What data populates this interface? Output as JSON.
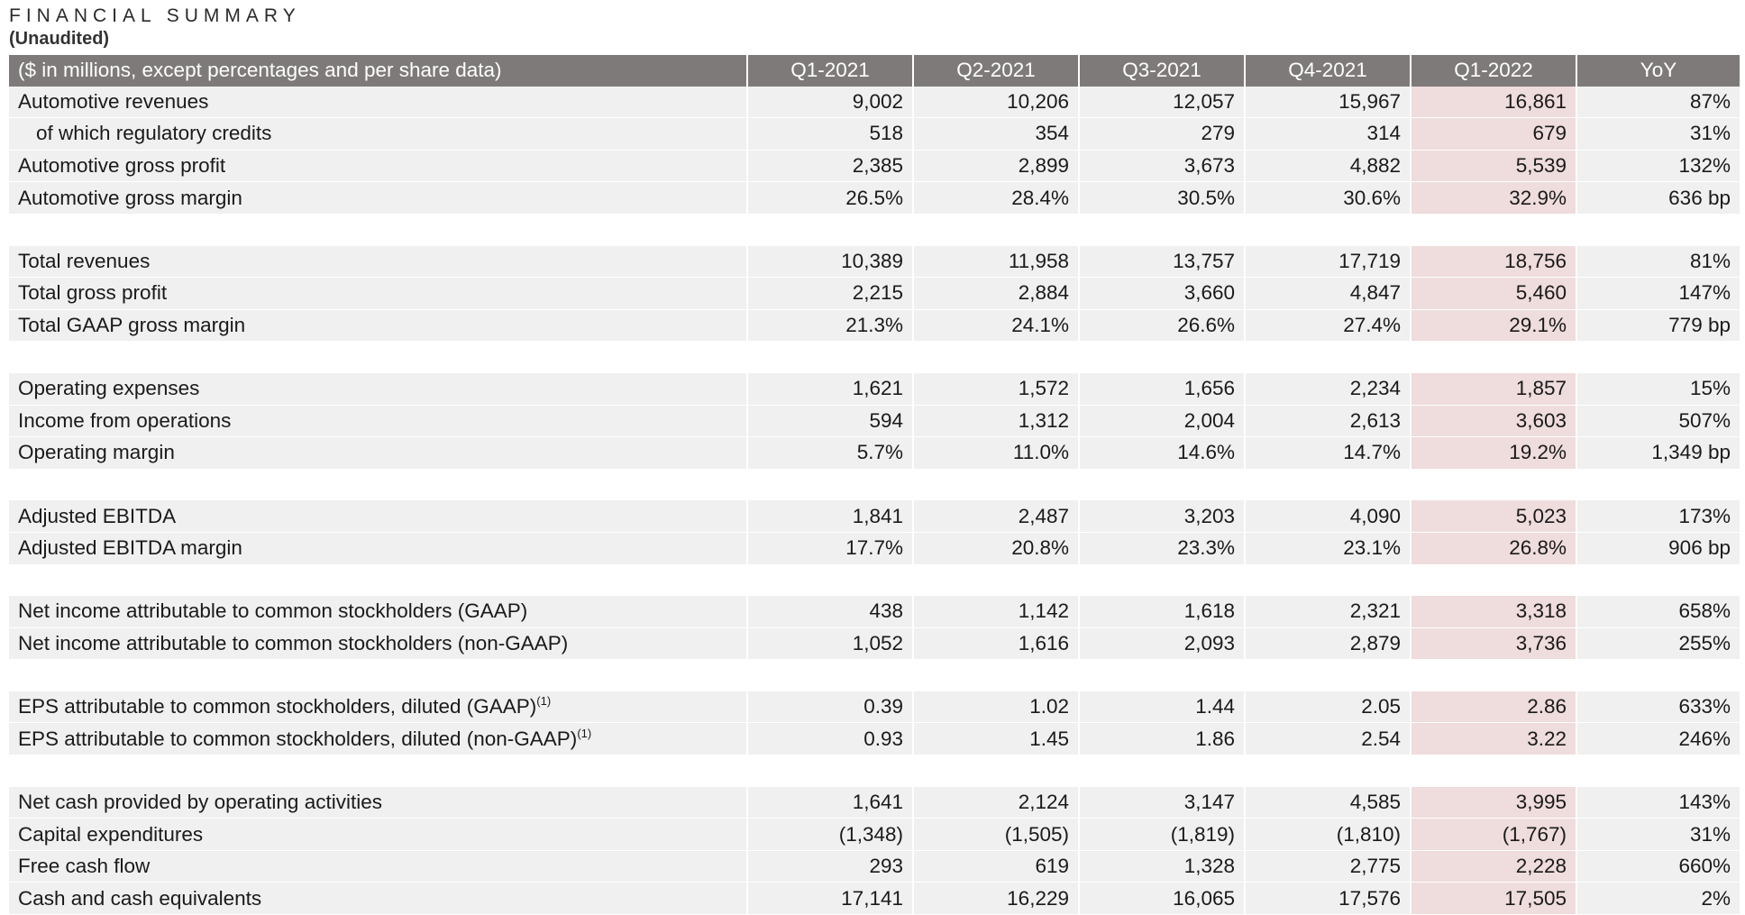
{
  "title": "FINANCIAL SUMMARY",
  "subtitle": "(Unaudited)",
  "header": {
    "label": "($ in millions, except percentages and per share data)",
    "columns": [
      "Q1-2021",
      "Q2-2021",
      "Q3-2021",
      "Q4-2021",
      "Q1-2022",
      "YoY"
    ]
  },
  "highlight_color": "#efdcdc",
  "header_color": "#7f7a7a",
  "groups": [
    {
      "rows": [
        {
          "label": "Automotive revenues",
          "sup": "",
          "indent": false,
          "values": [
            "9,002",
            "10,206",
            "12,057",
            "15,967",
            "16,861",
            "87%"
          ]
        },
        {
          "label": "of which regulatory credits",
          "sup": "",
          "indent": true,
          "values": [
            "518",
            "354",
            "279",
            "314",
            "679",
            "31%"
          ]
        },
        {
          "label": "Automotive gross profit",
          "sup": "",
          "indent": false,
          "values": [
            "2,385",
            "2,899",
            "3,673",
            "4,882",
            "5,539",
            "132%"
          ]
        },
        {
          "label": "Automotive gross margin",
          "sup": "",
          "indent": false,
          "values": [
            "26.5%",
            "28.4%",
            "30.5%",
            "30.6%",
            "32.9%",
            "636 bp"
          ]
        }
      ]
    },
    {
      "rows": [
        {
          "label": "Total revenues",
          "sup": "",
          "indent": false,
          "values": [
            "10,389",
            "11,958",
            "13,757",
            "17,719",
            "18,756",
            "81%"
          ]
        },
        {
          "label": "Total gross profit",
          "sup": "",
          "indent": false,
          "values": [
            "2,215",
            "2,884",
            "3,660",
            "4,847",
            "5,460",
            "147%"
          ]
        },
        {
          "label": "Total GAAP gross margin",
          "sup": "",
          "indent": false,
          "values": [
            "21.3%",
            "24.1%",
            "26.6%",
            "27.4%",
            "29.1%",
            "779 bp"
          ]
        }
      ]
    },
    {
      "rows": [
        {
          "label": "Operating expenses",
          "sup": "",
          "indent": false,
          "values": [
            "1,621",
            "1,572",
            "1,656",
            "2,234",
            "1,857",
            "15%"
          ]
        },
        {
          "label": "Income from operations",
          "sup": "",
          "indent": false,
          "values": [
            "594",
            "1,312",
            "2,004",
            "2,613",
            "3,603",
            "507%"
          ]
        },
        {
          "label": "Operating margin",
          "sup": "",
          "indent": false,
          "values": [
            "5.7%",
            "11.0%",
            "14.6%",
            "14.7%",
            "19.2%",
            "1,349 bp"
          ]
        }
      ]
    },
    {
      "rows": [
        {
          "label": "Adjusted EBITDA",
          "sup": "",
          "indent": false,
          "values": [
            "1,841",
            "2,487",
            "3,203",
            "4,090",
            "5,023",
            "173%"
          ]
        },
        {
          "label": "Adjusted EBITDA margin",
          "sup": "",
          "indent": false,
          "values": [
            "17.7%",
            "20.8%",
            "23.3%",
            "23.1%",
            "26.8%",
            "906 bp"
          ]
        }
      ]
    },
    {
      "rows": [
        {
          "label": "Net income attributable to common stockholders (GAAP)",
          "sup": "",
          "indent": false,
          "values": [
            "438",
            "1,142",
            "1,618",
            "2,321",
            "3,318",
            "658%"
          ]
        },
        {
          "label": "Net income attributable to common stockholders (non-GAAP)",
          "sup": "",
          "indent": false,
          "values": [
            "1,052",
            "1,616",
            "2,093",
            "2,879",
            "3,736",
            "255%"
          ]
        }
      ]
    },
    {
      "rows": [
        {
          "label": "EPS attributable to common stockholders, diluted (GAAP)",
          "sup": "(1)",
          "indent": false,
          "values": [
            "0.39",
            "1.02",
            "1.44",
            "2.05",
            "2.86",
            "633%"
          ]
        },
        {
          "label": "EPS attributable to common stockholders, diluted (non-GAAP)",
          "sup": "(1)",
          "indent": false,
          "values": [
            "0.93",
            "1.45",
            "1.86",
            "2.54",
            "3.22",
            "246%"
          ]
        }
      ]
    },
    {
      "rows": [
        {
          "label": "Net cash provided by operating activities",
          "sup": "",
          "indent": false,
          "values": [
            "1,641",
            "2,124",
            "3,147",
            "4,585",
            "3,995",
            "143%"
          ]
        },
        {
          "label": "Capital expenditures",
          "sup": "",
          "indent": false,
          "values": [
            "(1,348)",
            "(1,505)",
            "(1,819)",
            "(1,810)",
            "(1,767)",
            "31%"
          ]
        },
        {
          "label": "Free cash flow",
          "sup": "",
          "indent": false,
          "values": [
            "293",
            "619",
            "1,328",
            "2,775",
            "2,228",
            "660%"
          ]
        },
        {
          "label": "Cash and cash equivalents",
          "sup": "",
          "indent": false,
          "values": [
            "17,141",
            "16,229",
            "16,065",
            "17,576",
            "17,505",
            "2%"
          ]
        }
      ]
    }
  ]
}
